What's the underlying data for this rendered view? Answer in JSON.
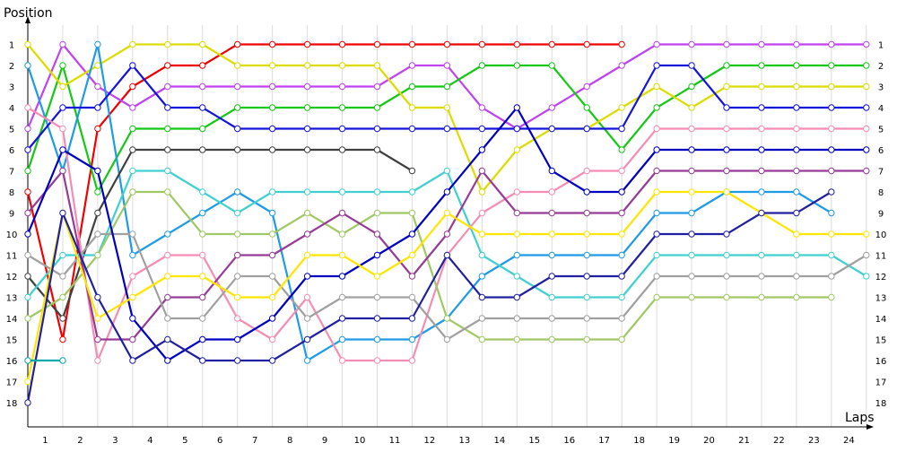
{
  "chart_data": {
    "type": "line",
    "title": "",
    "xlabel": "Laps",
    "ylabel": "Position",
    "x_categories": [
      "1",
      "2",
      "3",
      "4",
      "5",
      "6",
      "7",
      "8",
      "9",
      "10",
      "11",
      "12",
      "13",
      "14",
      "15",
      "16",
      "17",
      "18",
      "19",
      "20",
      "21",
      "22",
      "23",
      "24"
    ],
    "y_ticks": [
      "1",
      "2",
      "3",
      "4",
      "5",
      "6",
      "7",
      "8",
      "9",
      "10",
      "11",
      "12",
      "13",
      "14",
      "15",
      "16",
      "17",
      "18"
    ],
    "ylim": [
      1,
      18
    ],
    "grid": true,
    "legend": "none",
    "note_x": "positions sampled at start (S) and at each lap boundary 1..24",
    "series": [
      {
        "color": "#f00000",
        "positions": [
          8,
          15,
          5,
          3,
          2,
          2,
          1,
          1,
          1,
          1,
          1,
          1,
          1,
          1,
          1,
          1,
          1,
          1
        ]
      },
      {
        "color": "#c042f0",
        "positions": [
          5,
          1,
          3,
          4,
          3,
          3,
          3,
          3,
          3,
          3,
          3,
          2,
          2,
          4,
          5,
          4,
          3,
          2,
          1,
          1,
          1,
          1,
          1,
          1,
          1
        ]
      },
      {
        "color": "#14c814",
        "positions": [
          7,
          2,
          8,
          5,
          5,
          5,
          4,
          4,
          4,
          4,
          4,
          3,
          3,
          2,
          2,
          2,
          4,
          6,
          4,
          3,
          2,
          2,
          2,
          2,
          2
        ]
      },
      {
        "color": "#dcdc00",
        "positions": [
          1,
          3,
          2,
          1,
          1,
          1,
          2,
          2,
          2,
          2,
          2,
          4,
          4,
          8,
          6,
          5,
          5,
          4,
          3,
          4,
          3,
          3,
          3,
          3,
          3
        ]
      },
      {
        "color": "#1e9be6",
        "positions": [
          2,
          7,
          1,
          11,
          10,
          9,
          8,
          9,
          16,
          15,
          15,
          15,
          14,
          12,
          11,
          11,
          11,
          11,
          9,
          9,
          8,
          8,
          8,
          9
        ]
      },
      {
        "color": "#1414dc",
        "positions": [
          6,
          4,
          4,
          2,
          4,
          4,
          5,
          5,
          5,
          5,
          5,
          5,
          5,
          5,
          5,
          5,
          5,
          5,
          2,
          2,
          4,
          4,
          4,
          4,
          4
        ]
      },
      {
        "color": "#404040",
        "positions": [
          12,
          14,
          9,
          6,
          6,
          6,
          6,
          6,
          6,
          6,
          6,
          7
        ]
      },
      {
        "color": "#40d0d0",
        "positions": [
          13,
          11,
          11,
          7,
          7,
          8,
          9,
          8,
          8,
          8,
          8,
          8,
          7,
          11,
          12,
          13,
          13,
          13,
          11,
          11,
          11,
          11,
          11,
          11,
          12
        ]
      },
      {
        "color": "#f58cb4",
        "positions": [
          4,
          5,
          16,
          12,
          11,
          11,
          14,
          15,
          13,
          16,
          16,
          16,
          11,
          9,
          8,
          8,
          7,
          7,
          5,
          5,
          5,
          5,
          5,
          5,
          5
        ]
      },
      {
        "color": "#a0c864",
        "positions": [
          14,
          13,
          11,
          8,
          8,
          10,
          10,
          10,
          9,
          10,
          9,
          9,
          14,
          15,
          15,
          15,
          15,
          15,
          13,
          13,
          13,
          13,
          13,
          13
        ]
      },
      {
        "color": "#963c96",
        "positions": [
          9,
          7,
          15,
          15,
          13,
          13,
          11,
          11,
          10,
          9,
          10,
          12,
          10,
          7,
          9,
          9,
          9,
          9,
          7,
          7,
          7,
          7,
          7,
          7,
          7
        ]
      },
      {
        "color": "#a0a0a0",
        "positions": [
          11,
          12,
          10,
          10,
          14,
          14,
          12,
          12,
          14,
          13,
          13,
          13,
          15,
          14,
          14,
          14,
          14,
          14,
          12,
          12,
          12,
          12,
          12,
          12,
          11
        ]
      },
      {
        "color": "#0000c0",
        "positions": [
          10,
          6,
          7,
          14,
          16,
          15,
          15,
          14,
          12,
          12,
          11,
          10,
          8,
          6,
          4,
          7,
          8,
          8,
          6,
          6,
          6,
          6,
          6,
          6,
          6
        ]
      },
      {
        "color": "#ffe600",
        "positions": [
          17,
          9,
          14,
          13,
          12,
          12,
          13,
          13,
          11,
          11,
          12,
          11,
          9,
          10,
          10,
          10,
          10,
          10,
          8,
          8,
          8,
          9,
          10,
          10,
          10
        ]
      },
      {
        "color": "#2020a0",
        "positions": [
          18,
          9,
          13,
          16,
          15,
          16,
          16,
          16,
          15,
          14,
          14,
          14,
          11,
          13,
          13,
          12,
          12,
          12,
          10,
          10,
          10,
          9,
          9,
          8
        ]
      },
      {
        "color": "#00aaaa",
        "positions": [
          16,
          16
        ]
      }
    ]
  }
}
